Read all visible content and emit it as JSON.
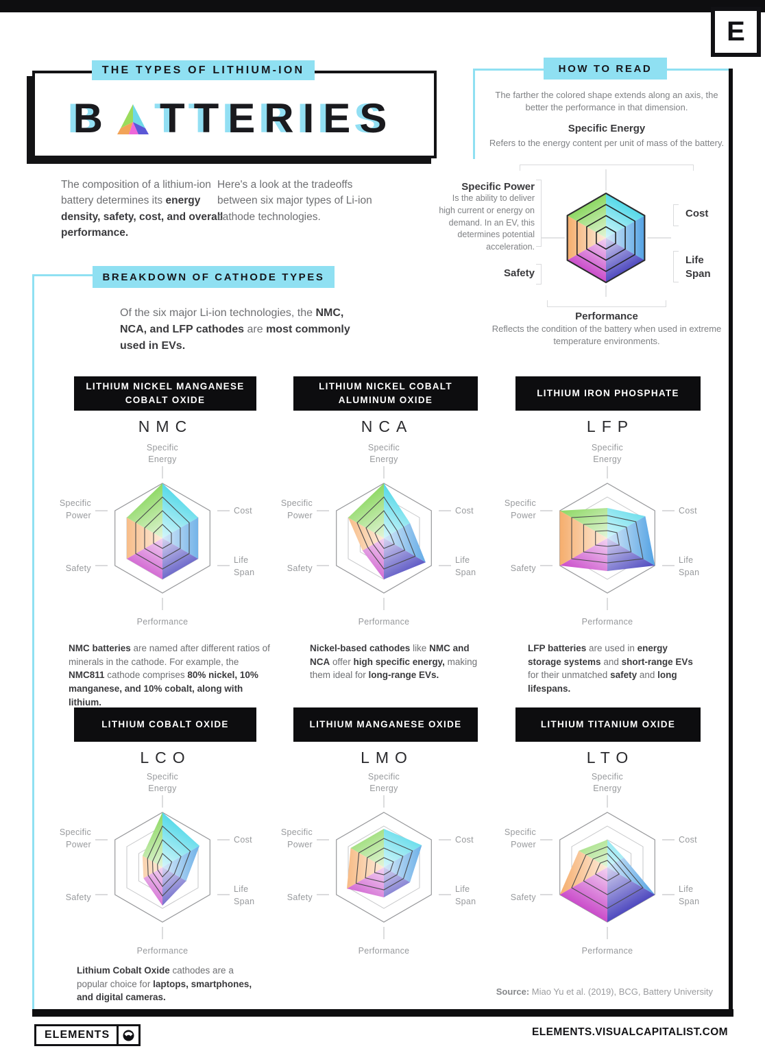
{
  "page": {
    "top_logo_letter": "E",
    "source": {
      "label": "Source:",
      "text": " Miao Yu et al. (2019), BCG, Battery University"
    },
    "footer": {
      "brand": "ELEMENTS",
      "site": "ELEMENTS.VISUALCAPITALIST.COM"
    },
    "colors": {
      "accent_cyan": "#8FE0F2",
      "ink": "#111114"
    }
  },
  "header": {
    "kicker": "THE TYPES OF LITHIUM-ION",
    "title_part1": "B",
    "title_part2": "TTERIES",
    "intro_left": [
      {
        "t": "The composition of a lithium-ion battery determines its "
      },
      {
        "t": "energy density, safety, cost, and overall performance.",
        "b": 1
      }
    ],
    "intro_right": [
      {
        "t": "Here's a look at the tradeoffs between six major types of Li-ion cathode technologies."
      }
    ]
  },
  "how_to_read": {
    "banner": "HOW TO READ",
    "lead": "The farther the colored shape extends along an axis, the better the performance in that dimension.",
    "annotations": {
      "specific_energy": {
        "title": "Specific Energy",
        "desc": "Refers to the energy content per unit of mass of the battery."
      },
      "specific_power": {
        "title": "Specific Power",
        "desc": "Is the ability to deliver high current or energy on demand. In an EV, this determines potential acceleration."
      },
      "cost": {
        "title": "Cost"
      },
      "life_span": {
        "title": "Life Span"
      },
      "safety": {
        "title": "Safety"
      },
      "performance": {
        "title": "Performance",
        "desc": "Reflects the condition of the battery when used in extreme temperature environments."
      }
    }
  },
  "breakdown": {
    "banner": "BREAKDOWN OF CATHODE TYPES",
    "text": [
      {
        "t": "Of the six major Li-ion technologies, the "
      },
      {
        "t": "NMC, NCA, and LFP cathodes",
        "b": 1
      },
      {
        "t": " are "
      },
      {
        "t": "most commonly used in EVs.",
        "b": 1
      }
    ]
  },
  "chart_data": {
    "type": "radar",
    "axes": [
      "Specific Energy",
      "Cost",
      "Life Span",
      "Performance",
      "Safety",
      "Specific Power"
    ],
    "scale": {
      "min": 0,
      "max": 1,
      "rings": [
        0.25,
        0.5,
        0.75,
        1
      ]
    },
    "sector_colors": [
      "#41D4E6",
      "#3F97E0",
      "#3B35B8",
      "#C438C4",
      "#F4A45C",
      "#7FD350"
    ],
    "charts": [
      {
        "id": "howto",
        "role": "legend-example",
        "values": [
          1,
          1,
          1,
          1,
          1,
          1
        ]
      },
      {
        "id": "nmc",
        "header": "LITHIUM NICKEL MANGANESE COBALT OXIDE",
        "acronym": "NMC",
        "values": [
          1,
          0.75,
          0.75,
          0.75,
          0.75,
          0.75
        ],
        "description": [
          {
            "t": "NMC batteries",
            "b": 1
          },
          {
            "t": " are named after different ratios of minerals in the cathode. For example, the "
          },
          {
            "t": "NMC811",
            "b": 1
          },
          {
            "t": " cathode comprises "
          },
          {
            "t": "80% nickel, 10% manganese, and 10% cobalt, along with lithium.",
            "b": 1
          }
        ]
      },
      {
        "id": "nca",
        "header": "LITHIUM NICKEL COBALT ALUMINUM OXIDE",
        "acronym": "NCA",
        "values": [
          1,
          0.55,
          0.88,
          0.75,
          0.45,
          0.75
        ],
        "description": [
          {
            "t": "Nickel-based cathodes",
            "b": 1
          },
          {
            "t": " like "
          },
          {
            "t": "NMC and NCA",
            "b": 1
          },
          {
            "t": " offer "
          },
          {
            "t": "high specific energy,",
            "b": 1
          },
          {
            "t": " making them ideal for "
          },
          {
            "t": "long-range EVs.",
            "b": 1
          }
        ]
      },
      {
        "id": "lfp",
        "header": "LITHIUM IRON PHOSPHATE",
        "acronym": "LFP",
        "values": [
          0.55,
          0.8,
          1,
          0.6,
          1,
          1
        ],
        "description": [
          {
            "t": "LFP batteries",
            "b": 1
          },
          {
            "t": " are used in "
          },
          {
            "t": "energy storage systems",
            "b": 1
          },
          {
            "t": " and "
          },
          {
            "t": "short-range EVs",
            "b": 1
          },
          {
            "t": " for their unmatched "
          },
          {
            "t": "safety",
            "b": 1
          },
          {
            "t": " and "
          },
          {
            "t": "long lifespans.",
            "b": 1
          }
        ]
      },
      {
        "id": "lco",
        "header": "LITHIUM COBALT OXIDE",
        "acronym": "LCO",
        "values": [
          1,
          0.78,
          0.5,
          0.7,
          0.4,
          0.42
        ],
        "description": [
          {
            "t": "Lithium Cobalt Oxide",
            "b": 1
          },
          {
            "t": " cathodes are a popular choice for "
          },
          {
            "t": "laptops, smartphones, and digital cameras.",
            "b": 1
          }
        ]
      },
      {
        "id": "lmo",
        "header": "LITHIUM MANGANESE OXIDE",
        "acronym": "LMO",
        "values": [
          0.7,
          0.8,
          0.55,
          0.55,
          0.78,
          0.7
        ]
      },
      {
        "id": "lto",
        "header": "LITHIUM TITANIUM OXIDE",
        "acronym": "LTO",
        "values": [
          0.5,
          0.35,
          1,
          1,
          1,
          0.6
        ]
      }
    ]
  }
}
